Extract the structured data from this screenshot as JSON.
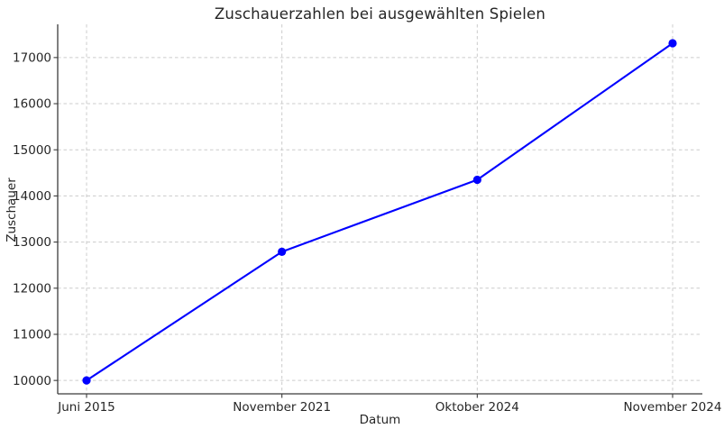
{
  "chart_data": {
    "type": "line",
    "title": "Zuschauerzahlen bei ausgewählten Spielen",
    "xlabel": "Datum",
    "ylabel": "Zuschauer",
    "categories": [
      "Juni 2015",
      "November 2021",
      "Oktober 2024",
      "November 2024"
    ],
    "series": [
      {
        "name": "Zuschauer",
        "values": [
          10000,
          12790,
          14350,
          17310
        ]
      }
    ],
    "yticks": [
      10000,
      11000,
      12000,
      13000,
      14000,
      15000,
      16000,
      17000
    ],
    "ylim": [
      9710,
      17720
    ],
    "grid": "dashed",
    "legend": "none",
    "colors": {
      "line": "#0000ff",
      "marker": "#0000ff",
      "grid": "#cccccc",
      "spine": "#3b3b3b",
      "text": "#262626",
      "background": "#ffffff"
    }
  }
}
